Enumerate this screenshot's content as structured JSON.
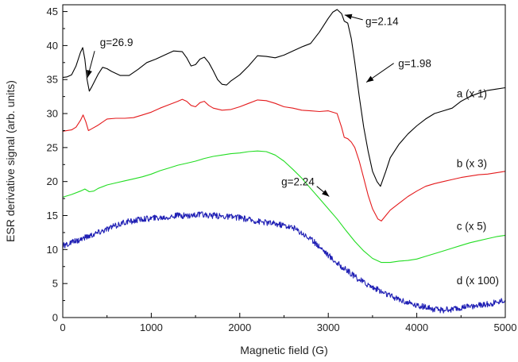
{
  "chart_data": {
    "type": "line",
    "title": "",
    "xlabel": "Magnetic field (G)",
    "ylabel": "ESR derivative signal (arb. units)",
    "xlim": [
      0,
      5000
    ],
    "ylim": [
      0,
      46
    ],
    "xticks": [
      0,
      1000,
      2000,
      3000,
      4000,
      5000
    ],
    "yticks": [
      0,
      5,
      10,
      15,
      20,
      25,
      30,
      35,
      40,
      45
    ],
    "grid": false,
    "legend": "none",
    "series": [
      {
        "name": "a (x 1)",
        "color": "#000000",
        "noise": 0,
        "label_at": [
          4450,
          33
        ],
        "x": [
          0,
          50,
          100,
          150,
          200,
          225,
          250,
          275,
          300,
          330,
          400,
          450,
          500,
          550,
          650,
          750,
          850,
          950,
          1050,
          1150,
          1250,
          1350,
          1400,
          1450,
          1500,
          1550,
          1600,
          1650,
          1700,
          1750,
          1800,
          1850,
          1900,
          2000,
          2100,
          2200,
          2300,
          2400,
          2500,
          2600,
          2700,
          2800,
          2900,
          3000,
          3050,
          3100,
          3150,
          3180,
          3220,
          3260,
          3300,
          3350,
          3400,
          3450,
          3500,
          3550,
          3590,
          3650,
          3700,
          3800,
          3900,
          4000,
          4100,
          4200,
          4300,
          4400,
          4500,
          4600,
          4700,
          4800,
          4900,
          5000
        ],
        "y": [
          35.3,
          35.4,
          35.7,
          37.0,
          39.0,
          39.7,
          38.0,
          35.0,
          33.3,
          34.0,
          35.8,
          36.8,
          36.6,
          36.2,
          35.6,
          35.6,
          36.5,
          37.5,
          38.0,
          38.6,
          39.2,
          39.1,
          38.2,
          37.0,
          37.2,
          38.0,
          38.3,
          37.5,
          36.3,
          35.0,
          34.3,
          34.2,
          34.8,
          35.7,
          37.0,
          38.5,
          38.4,
          38.2,
          38.6,
          39.2,
          39.8,
          40.3,
          42.0,
          44.0,
          44.9,
          45.3,
          44.7,
          43.6,
          43.3,
          41.0,
          37.5,
          32.5,
          28.0,
          24.5,
          21.5,
          20.0,
          19.3,
          21.5,
          23.5,
          25.5,
          27.0,
          28.2,
          29.2,
          30.0,
          30.4,
          30.8,
          31.8,
          32.5,
          33.0,
          33.4,
          33.6,
          33.8
        ]
      },
      {
        "name": "b (x 3)",
        "color": "#e41a1c",
        "noise": 0,
        "label_at": [
          4450,
          22.7
        ],
        "x": [
          0,
          100,
          150,
          200,
          230,
          260,
          290,
          320,
          400,
          500,
          600,
          700,
          800,
          900,
          1000,
          1100,
          1200,
          1300,
          1350,
          1400,
          1450,
          1500,
          1550,
          1600,
          1650,
          1700,
          1800,
          1900,
          2000,
          2100,
          2200,
          2300,
          2400,
          2500,
          2600,
          2700,
          2800,
          2900,
          3000,
          3100,
          3150,
          3180,
          3220,
          3260,
          3300,
          3350,
          3400,
          3450,
          3500,
          3560,
          3600,
          3650,
          3700,
          3800,
          3900,
          4000,
          4100,
          4200,
          4300,
          4400,
          4500,
          4600,
          4700,
          4800,
          4900,
          5000
        ],
        "y": [
          27.4,
          27.6,
          28.0,
          29.0,
          29.8,
          28.8,
          27.5,
          27.7,
          28.3,
          29.2,
          29.3,
          29.3,
          29.4,
          29.8,
          30.2,
          30.8,
          31.3,
          31.8,
          32.1,
          31.8,
          31.2,
          31.0,
          31.6,
          31.8,
          31.2,
          30.8,
          30.5,
          30.6,
          31.0,
          31.5,
          32.0,
          31.9,
          31.5,
          31.0,
          30.8,
          30.5,
          30.4,
          30.3,
          30.4,
          30.0,
          28.0,
          26.5,
          26.3,
          25.8,
          25.0,
          23.0,
          20.5,
          18.0,
          16.0,
          14.5,
          14.2,
          15.0,
          15.8,
          16.8,
          17.8,
          18.6,
          19.3,
          19.7,
          20.0,
          20.3,
          20.6,
          20.8,
          21.0,
          21.1,
          21.3,
          21.5
        ]
      },
      {
        "name": "c (x 5)",
        "color": "#22dd22",
        "noise": 0,
        "label_at": [
          4450,
          13.5
        ],
        "x": [
          0,
          100,
          200,
          250,
          300,
          350,
          400,
          500,
          600,
          700,
          800,
          900,
          1000,
          1100,
          1200,
          1300,
          1400,
          1500,
          1600,
          1700,
          1800,
          1900,
          2000,
          2100,
          2200,
          2300,
          2400,
          2500,
          2600,
          2700,
          2800,
          2900,
          3000,
          3100,
          3200,
          3300,
          3400,
          3500,
          3600,
          3700,
          3800,
          3900,
          4000,
          4100,
          4200,
          4300,
          4400,
          4500,
          4600,
          4700,
          4800,
          4900,
          5000
        ],
        "y": [
          17.7,
          18.1,
          18.6,
          18.9,
          18.5,
          18.6,
          19.0,
          19.5,
          19.8,
          20.1,
          20.4,
          20.7,
          21.1,
          21.6,
          22.0,
          22.4,
          22.7,
          23.0,
          23.4,
          23.7,
          23.9,
          24.1,
          24.2,
          24.4,
          24.5,
          24.4,
          23.9,
          23.0,
          21.8,
          20.5,
          19.0,
          17.5,
          16.0,
          14.5,
          12.8,
          11.2,
          9.8,
          8.7,
          8.1,
          8.1,
          8.3,
          8.4,
          8.6,
          9.0,
          9.4,
          9.8,
          10.2,
          10.6,
          11.0,
          11.3,
          11.6,
          11.9,
          12.1
        ]
      },
      {
        "name": "d (x 100)",
        "color": "#1f1fb4",
        "noise": 0.45,
        "label_at": [
          4450,
          5.5
        ],
        "x": [
          0,
          100,
          200,
          300,
          400,
          500,
          600,
          700,
          800,
          900,
          1000,
          1100,
          1200,
          1300,
          1400,
          1500,
          1600,
          1700,
          1800,
          1900,
          2000,
          2100,
          2200,
          2300,
          2400,
          2500,
          2600,
          2700,
          2800,
          2900,
          3000,
          3100,
          3200,
          3300,
          3400,
          3500,
          3600,
          3700,
          3800,
          3900,
          4000,
          4100,
          4200,
          4300,
          4400,
          4500,
          4600,
          4700,
          4800,
          4900,
          5000
        ],
        "y": [
          10.5,
          11.0,
          11.5,
          12.0,
          12.5,
          13.0,
          13.5,
          14.0,
          14.2,
          14.5,
          14.6,
          14.7,
          14.8,
          15.0,
          15.0,
          15.1,
          15.1,
          15.0,
          14.9,
          14.8,
          14.7,
          14.4,
          14.2,
          14.0,
          13.8,
          13.6,
          13.2,
          12.5,
          11.5,
          10.5,
          9.2,
          8.0,
          7.0,
          6.0,
          5.2,
          4.5,
          3.8,
          3.2,
          2.7,
          2.2,
          1.8,
          1.5,
          1.2,
          1.1,
          1.2,
          1.4,
          1.6,
          1.8,
          2.0,
          2.2,
          2.7
        ]
      }
    ],
    "annotations": [
      {
        "text": "g=26.9",
        "text_at": [
          420,
          40.5
        ],
        "arrow_from": [
          360,
          39.2
        ],
        "arrow_to": [
          280,
          35.3
        ]
      },
      {
        "text": "g=2.14",
        "text_at": [
          3420,
          43.6
        ],
        "arrow_from": [
          3390,
          43.8
        ],
        "arrow_to": [
          3185,
          44.5
        ]
      },
      {
        "text": "g=1.98",
        "text_at": [
          3790,
          37.4
        ],
        "arrow_from": [
          3740,
          37.4
        ],
        "arrow_to": [
          3430,
          34.6
        ]
      },
      {
        "text": "g=2.24",
        "text_at": [
          2470,
          20.0
        ],
        "arrow_from": [
          2870,
          19.3
        ],
        "arrow_to": [
          3010,
          17.8
        ]
      }
    ]
  }
}
